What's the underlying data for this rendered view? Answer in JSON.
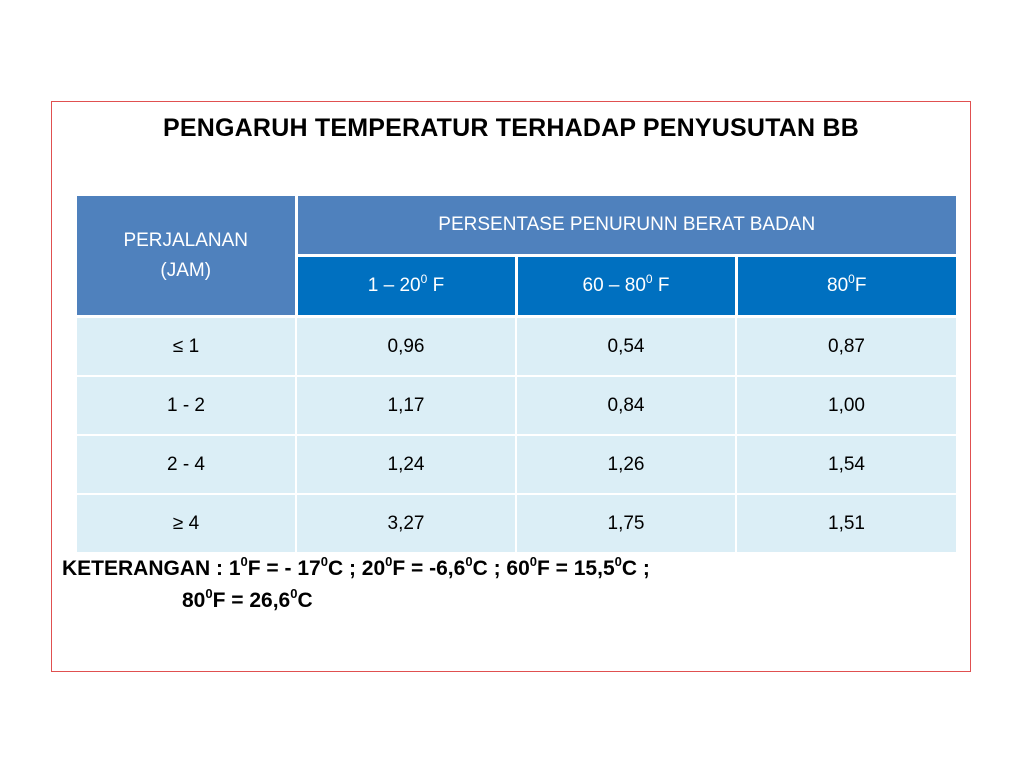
{
  "slide": {
    "title": "PENGARUH TEMPERATUR TERHADAP PENYUSUTAN BB"
  },
  "table": {
    "row_header": {
      "line1": "PERJALANAN",
      "line2": "(JAM)"
    },
    "group_header": "PERSENTASE PENURUNN BERAT BADAN",
    "columns": [
      {
        "base": "1 – 20",
        "sup": "0",
        "unit": " F"
      },
      {
        "base": "60 – 80",
        "sup": "0",
        "unit": " F"
      },
      {
        "base": "80",
        "sup": "0",
        "unit": "F"
      }
    ],
    "rows": [
      {
        "label": "≤ 1",
        "values": [
          "0,96",
          "0,54",
          "0,87"
        ]
      },
      {
        "label": "1 - 2",
        "values": [
          "1,17",
          "0,84",
          "1,00"
        ]
      },
      {
        "label": "2 - 4",
        "values": [
          "1,24",
          "1,26",
          "1,54"
        ]
      },
      {
        "label": "≥ 4",
        "values": [
          "3,27",
          "1,75",
          "1,51"
        ]
      }
    ]
  },
  "note": {
    "label": "KETERANGAN : ",
    "deg": "0",
    "p1a": "1",
    "p1b": "F = - 17",
    "p1c": "C ; ",
    "p2a": "20",
    "p2b": "F = -6,6",
    "p2c": "C ; ",
    "p3a": "60",
    "p3b": "F = 15,5",
    "p3c": "C ;",
    "p4a": "80",
    "p4b": "F = 26,6",
    "p4c": "C"
  }
}
